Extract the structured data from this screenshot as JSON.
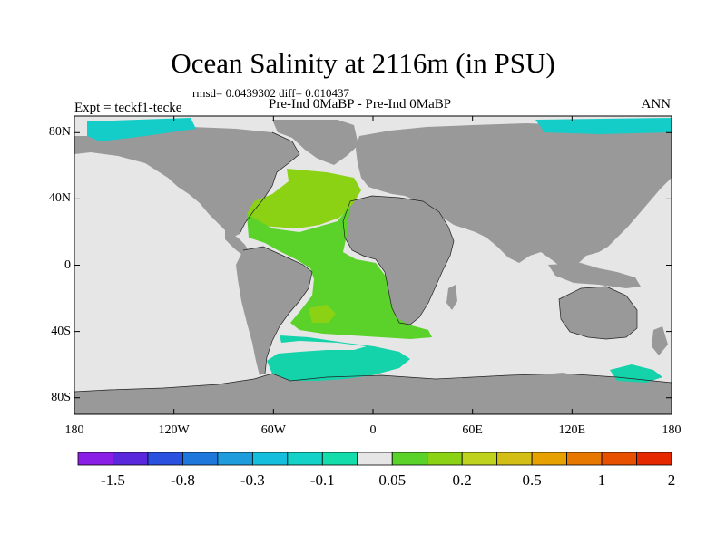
{
  "title": "Ocean Salinity at 2116m (in PSU)",
  "stats": "rmsd= 0.0439302 diff= 0.010437",
  "left_label": "Expt = teckf1-tecke",
  "center_label": "Pre-Ind 0MaBP - Pre-Ind 0MaBP",
  "right_label": "ANN",
  "axes": {
    "y_ticks": [
      {
        "value": 80,
        "label": "80N"
      },
      {
        "value": 40,
        "label": "40N"
      },
      {
        "value": 0,
        "label": "0"
      },
      {
        "value": -40,
        "label": "40S"
      },
      {
        "value": -80,
        "label": "80S"
      }
    ],
    "x_ticks": [
      {
        "value": -180,
        "label": "180"
      },
      {
        "value": -120,
        "label": "120W"
      },
      {
        "value": -60,
        "label": "60W"
      },
      {
        "value": 0,
        "label": "0"
      },
      {
        "value": 60,
        "label": "60E"
      },
      {
        "value": 120,
        "label": "120E"
      },
      {
        "value": 180,
        "label": "180"
      }
    ],
    "lon_range": [
      -180,
      180
    ],
    "lat_range": [
      -90,
      90
    ]
  },
  "colorbar": {
    "colors": [
      "#8a1ee6",
      "#5a28dc",
      "#2a50e0",
      "#1e78dc",
      "#1e9cdc",
      "#14bedc",
      "#14d2c8",
      "#14dcaa",
      "#e6e6e6",
      "#5ad22a",
      "#8cd214",
      "#bed21e",
      "#d2be14",
      "#e6a000",
      "#e67800",
      "#e65000",
      "#e62800"
    ],
    "labels": [
      {
        "boundary": 1,
        "text": "-1.5"
      },
      {
        "boundary": 3,
        "text": "-0.8"
      },
      {
        "boundary": 5,
        "text": "-0.3"
      },
      {
        "boundary": 7,
        "text": "-0.1"
      },
      {
        "boundary": 9,
        "text": "0.05"
      },
      {
        "boundary": 11,
        "text": "0.2"
      },
      {
        "boundary": 13,
        "text": "0.5"
      },
      {
        "boundary": 15,
        "text": "1"
      },
      {
        "boundary": 17,
        "text": "2"
      }
    ]
  },
  "colors": {
    "land": "#999999",
    "ocean_neutral": "#e6e6e6",
    "positive_low": "#8cd214",
    "positive_mid": "#5ad22a",
    "negative_low": "#14d2aa",
    "negative_arctic": "#14cdc8"
  }
}
